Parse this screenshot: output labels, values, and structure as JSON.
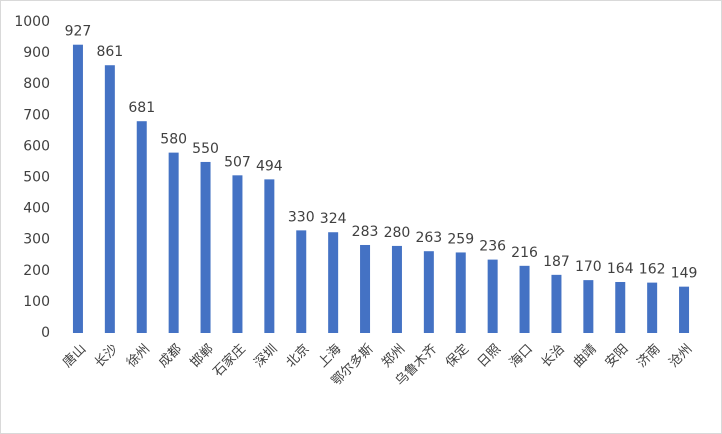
{
  "chart_data": {
    "type": "bar",
    "categories": [
      "唐山",
      "长沙",
      "徐州",
      "成都",
      "邯郸",
      "石家庄",
      "深圳",
      "北京",
      "上海",
      "鄂尔多斯",
      "郑州",
      "乌鲁木齐",
      "保定",
      "日照",
      "海口",
      "长治",
      "曲靖",
      "安阳",
      "济南",
      "沧州"
    ],
    "values": [
      927,
      861,
      681,
      580,
      550,
      507,
      494,
      330,
      324,
      283,
      280,
      263,
      259,
      236,
      216,
      187,
      170,
      164,
      162,
      149
    ],
    "color": "#4472c4",
    "ylim": [
      0,
      1000
    ],
    "yticks": [
      0,
      100,
      200,
      300,
      400,
      500,
      600,
      700,
      800,
      900,
      1000
    ],
    "grid": false
  }
}
